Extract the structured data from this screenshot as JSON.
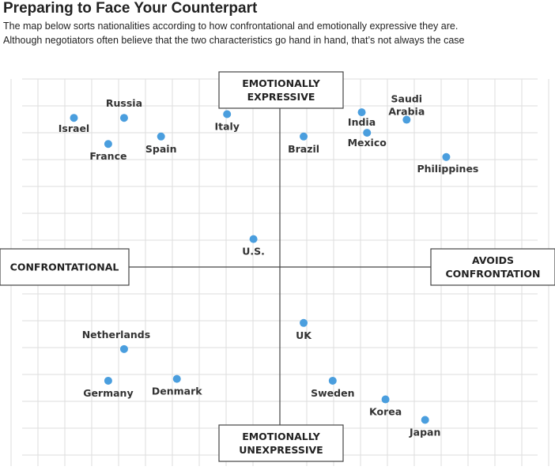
{
  "header": {
    "title": "Preparing to Face Your Counterpart",
    "subtitle_line1": "The map below sorts nationalities according to how confrontational and emotionally expressive they are.",
    "subtitle_line2": "Although negotiators often believe that the two characteristics go hand in hand, that’s not always the case"
  },
  "chart_data": {
    "type": "scatter",
    "title": "Preparing to Face Your Counterpart",
    "axis_labels": {
      "top": [
        "EMOTIONALLY",
        "EXPRESSIVE"
      ],
      "bottom": [
        "EMOTIONALLY",
        "UNEXPRESSIVE"
      ],
      "left": [
        "CONFRONTATIONAL"
      ],
      "right": [
        "AVOIDS",
        "CONFRONTATION"
      ]
    },
    "xlim": [
      -1,
      1
    ],
    "ylim": [
      -1,
      1
    ],
    "grid": true,
    "point_color": "#4a9ede",
    "points": [
      {
        "label": "Israel",
        "x": -0.78,
        "y": 0.8
      },
      {
        "label": "Russia",
        "x": -0.59,
        "y": 0.8
      },
      {
        "label": "France",
        "x": -0.65,
        "y": 0.66
      },
      {
        "label": "Spain",
        "x": -0.45,
        "y": 0.7
      },
      {
        "label": "Italy",
        "x": -0.2,
        "y": 0.82
      },
      {
        "label": "U.S.",
        "x": -0.1,
        "y": 0.15
      },
      {
        "label": "Brazil",
        "x": 0.09,
        "y": 0.7
      },
      {
        "label": "India",
        "x": 0.31,
        "y": 0.83
      },
      {
        "label": "Mexico",
        "x": 0.33,
        "y": 0.72
      },
      {
        "label": "Saudi Arabia",
        "x": 0.48,
        "y": 0.79
      },
      {
        "label": "Philippines",
        "x": 0.63,
        "y": 0.59
      },
      {
        "label": "UK",
        "x": 0.09,
        "y": -0.3
      },
      {
        "label": "Netherlands",
        "x": -0.59,
        "y": -0.44
      },
      {
        "label": "Germany",
        "x": -0.65,
        "y": -0.61
      },
      {
        "label": "Denmark",
        "x": -0.39,
        "y": -0.6
      },
      {
        "label": "Sweden",
        "x": 0.2,
        "y": -0.61
      },
      {
        "label": "Korea",
        "x": 0.4,
        "y": -0.71
      },
      {
        "label": "Japan",
        "x": 0.55,
        "y": -0.82
      }
    ]
  }
}
